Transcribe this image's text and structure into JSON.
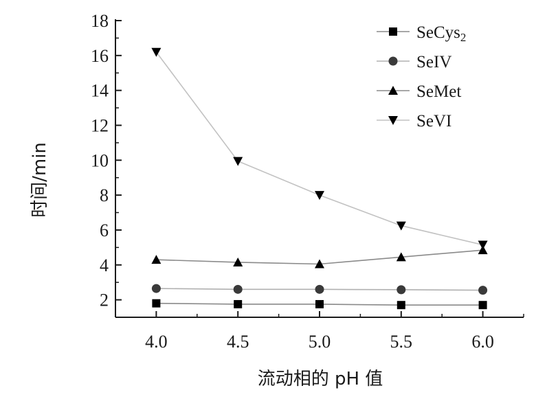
{
  "chart_data": {
    "type": "line",
    "title": "",
    "xlabel": "流动相的 pH 值",
    "ylabel": "时间/min",
    "x": [
      "4.0",
      "4.5",
      "5.0",
      "5.5",
      "6.0"
    ],
    "x_values": [
      4.0,
      4.5,
      5.0,
      5.5,
      6.0
    ],
    "xlim": [
      3.75,
      6.25
    ],
    "ylim": [
      1,
      18
    ],
    "yticks": [
      2,
      4,
      6,
      8,
      10,
      12,
      14,
      16,
      18
    ],
    "grid": false,
    "legend_position": "top-right",
    "series": [
      {
        "name": "SeCys",
        "name_sub": "2",
        "marker": "square",
        "color": "#000000",
        "line_color": "#8a8a8a",
        "values": [
          1.8,
          1.75,
          1.75,
          1.7,
          1.7
        ]
      },
      {
        "name": "SeIV",
        "name_sub": "",
        "marker": "circle",
        "color": "#3a3a3a",
        "line_color": "#b0b0b0",
        "values": [
          2.65,
          2.6,
          2.6,
          2.58,
          2.55
        ]
      },
      {
        "name": "SeMet",
        "name_sub": "",
        "marker": "triangle-up",
        "color": "#000000",
        "line_color": "#8a8a8a",
        "values": [
          4.3,
          4.15,
          4.05,
          4.45,
          4.85
        ]
      },
      {
        "name": "SeVI",
        "name_sub": "",
        "marker": "triangle-down",
        "color": "#000000",
        "line_color": "#c2c2c2",
        "values": [
          16.2,
          9.95,
          8.0,
          6.25,
          5.15
        ]
      }
    ]
  }
}
